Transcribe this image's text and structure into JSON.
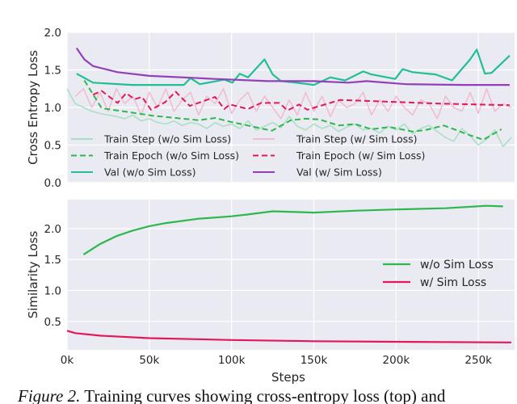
{
  "chart_data": [
    {
      "type": "line",
      "ylabel": "Cross Entropy Loss",
      "xlabel": "",
      "xlim": [
        0,
        272
      ],
      "ylim": [
        0,
        2.0
      ],
      "yticks": [
        "0.0",
        "0.5",
        "1.0",
        "1.5",
        "2.0"
      ],
      "yticks_values": [
        0,
        0.5,
        1.0,
        1.5,
        2.0
      ],
      "xticks_values": [
        0,
        50,
        100,
        150,
        200,
        250
      ],
      "grid": true,
      "legend_position": "bottom",
      "legend": [
        "Train Step (w/o Sim Loss)",
        "Train Step (w/ Sim Loss)",
        "Train Epoch (w/o Sim Loss)",
        "Train Epoch (w/ Sim Loss)",
        "Val (w/o Sim Loss)",
        "Val (w/ Sim Loss)"
      ],
      "series": [
        {
          "name": "Train Step (w/o Sim Loss)",
          "color": "#a9e0c4",
          "style": "solid",
          "x_step": 5,
          "x_start": 0,
          "y": [
            1.25,
            1.05,
            1.0,
            0.95,
            0.92,
            0.9,
            0.88,
            0.85,
            0.9,
            0.82,
            0.85,
            0.8,
            0.78,
            0.82,
            0.76,
            0.8,
            0.78,
            0.72,
            0.8,
            0.75,
            0.78,
            0.72,
            0.82,
            0.7,
            0.75,
            0.8,
            0.73,
            0.88,
            0.75,
            0.7,
            0.78,
            0.72,
            0.76,
            0.68,
            0.74,
            0.78,
            0.7,
            0.72,
            0.66,
            0.75,
            0.7,
            0.78,
            0.65,
            0.72,
            0.76,
            0.68,
            0.6,
            0.55,
            0.72,
            0.62,
            0.5,
            0.58,
            0.7,
            0.48,
            0.6
          ]
        },
        {
          "name": "Train Step (w/ Sim Loss)",
          "color": "#f2bcd0",
          "style": "solid",
          "x_step": 5,
          "x_start": 5,
          "y": [
            1.15,
            1.25,
            1.0,
            1.2,
            0.95,
            1.25,
            1.05,
            1.15,
            0.9,
            1.2,
            1.0,
            1.25,
            0.95,
            1.1,
            1.2,
            0.9,
            1.15,
            1.05,
            1.25,
            0.92,
            1.1,
            1.2,
            0.95,
            1.15,
            1.0,
            0.85,
            1.1,
            0.9,
            1.2,
            0.95,
            1.15,
            0.88,
            1.1,
            1.0,
            1.05,
            1.2,
            0.9,
            1.1,
            0.95,
            1.15,
            1.0,
            0.9,
            1.1,
            1.05,
            0.85,
            1.15,
            1.0,
            0.95,
            1.2,
            0.92,
            1.25,
            0.95,
            1.05,
            1.0
          ]
        },
        {
          "name": "Train Epoch (w/o Sim Loss)",
          "color": "#2db84d",
          "style": "dashed",
          "x": [
            10.5,
            21,
            34,
            52,
            80,
            90,
            97,
            124.5,
            136,
            145,
            153.5,
            165,
            175,
            185,
            196,
            210,
            218,
            229,
            245,
            253,
            264
          ],
          "y": [
            1.36,
            0.99,
            0.95,
            0.89,
            0.83,
            0.86,
            0.82,
            0.69,
            0.83,
            0.85,
            0.84,
            0.76,
            0.78,
            0.71,
            0.74,
            0.68,
            0.7,
            0.76,
            0.63,
            0.57,
            0.71
          ]
        },
        {
          "name": "Train Epoch (w/ Sim Loss)",
          "color": "#e2185a",
          "style": "dashed",
          "x": [
            15.8,
            21,
            30.7,
            36,
            41,
            45.6,
            51,
            59.6,
            66,
            74.6,
            90,
            95.6,
            99,
            110,
            118,
            129,
            134,
            141,
            146,
            166,
            192,
            227,
            269
          ],
          "y": [
            1.17,
            1.22,
            1.06,
            1.19,
            1.11,
            1.14,
            0.97,
            1.07,
            1.21,
            1.02,
            1.14,
            0.98,
            1.04,
            0.98,
            1.06,
            1.06,
            0.96,
            1.04,
            0.97,
            1.1,
            1.08,
            1.05,
            1.03
          ]
        },
        {
          "name": "Val (w/o Sim Loss)",
          "color": "#22bf94",
          "style": "solid",
          "x": [
            5.8,
            15.8,
            39.5,
            65.8,
            71,
            75,
            80.7,
            95.6,
            100.5,
            105,
            110,
            120,
            125,
            130,
            139,
            150,
            160,
            169,
            180,
            185,
            199.5,
            204,
            210,
            224,
            234,
            245,
            249,
            254,
            258,
            269
          ],
          "y": [
            1.45,
            1.33,
            1.3,
            1.3,
            1.3,
            1.39,
            1.31,
            1.37,
            1.33,
            1.45,
            1.4,
            1.64,
            1.44,
            1.35,
            1.33,
            1.3,
            1.4,
            1.36,
            1.48,
            1.44,
            1.38,
            1.51,
            1.47,
            1.44,
            1.36,
            1.64,
            1.77,
            1.45,
            1.46,
            1.69
          ]
        },
        {
          "name": "Val (w/ Sim Loss)",
          "color": "#9340b8",
          "style": "solid",
          "x": [
            5.8,
            10.5,
            15.8,
            30.7,
            50,
            80,
            90,
            122,
            150,
            171,
            182,
            206,
            241,
            269
          ],
          "y": [
            1.79,
            1.64,
            1.55,
            1.47,
            1.42,
            1.39,
            1.38,
            1.35,
            1.35,
            1.33,
            1.35,
            1.31,
            1.3,
            1.3
          ]
        }
      ]
    },
    {
      "type": "line",
      "ylabel": "Similarity Loss",
      "xlabel": "Steps",
      "xlim": [
        0,
        272
      ],
      "ylim": [
        0.04,
        2.47
      ],
      "yticks": [
        "0.5",
        "1.0",
        "1.5",
        "2.0"
      ],
      "yticks_values": [
        0.5,
        1.0,
        1.5,
        2.0
      ],
      "xticks": [
        "0k",
        "50k",
        "100k",
        "150k",
        "200k",
        "250k"
      ],
      "xticks_values": [
        0,
        50,
        100,
        150,
        200,
        250
      ],
      "grid": true,
      "legend_position": "right",
      "legend": [
        "w/o Sim Loss",
        "w/ Sim Loss"
      ],
      "series": [
        {
          "name": "w/o Sim Loss",
          "color": "#2db84d",
          "x": [
            10,
            20,
            30,
            40,
            50,
            60,
            80,
            100,
            110,
            125,
            150,
            175,
            200,
            230,
            255,
            265
          ],
          "y": [
            1.58,
            1.75,
            1.88,
            1.97,
            2.04,
            2.09,
            2.16,
            2.2,
            2.23,
            2.28,
            2.26,
            2.29,
            2.31,
            2.33,
            2.37,
            2.36
          ]
        },
        {
          "name": "w/ Sim Loss",
          "color": "#e2185a",
          "x": [
            0,
            5,
            20,
            50,
            100,
            150,
            200,
            270
          ],
          "y": [
            0.35,
            0.31,
            0.27,
            0.23,
            0.2,
            0.18,
            0.17,
            0.16
          ]
        }
      ]
    }
  ],
  "caption": {
    "label": "Figure 2.",
    "text": " Training curves showing cross-entropy loss (top) and"
  }
}
